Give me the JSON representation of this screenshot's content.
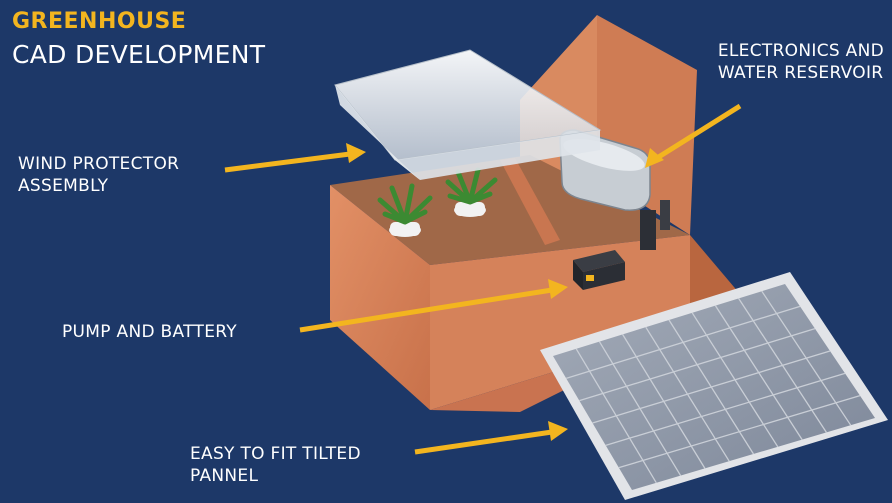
{
  "title": {
    "main": "GREENHOUSE",
    "sub": "CAD DEVELOPMENT"
  },
  "callouts": {
    "electronics": {
      "line1": "ELECTRONICS AND",
      "line2": "WATER RESERVOIR"
    },
    "wind": {
      "line1": "WIND PROTECTOR",
      "line2": "ASSEMBLY"
    },
    "pump": {
      "line1": "PUMP AND BATTERY"
    },
    "panel": {
      "line1": "EASY TO FIT TILTED",
      "line2": "PANNEL"
    }
  },
  "colors": {
    "background": "#1d3868",
    "title_accent": "#f3b51f",
    "arrow": "#f3b51f",
    "wood": "#d9835a",
    "wood_dark": "#b9663f",
    "panel_cell": "#8d96a6",
    "panel_frame": "#e2e4e8"
  },
  "icons": {
    "arrow": "arrow-right-icon",
    "plant": "plant-icon",
    "battery": "battery-icon"
  }
}
